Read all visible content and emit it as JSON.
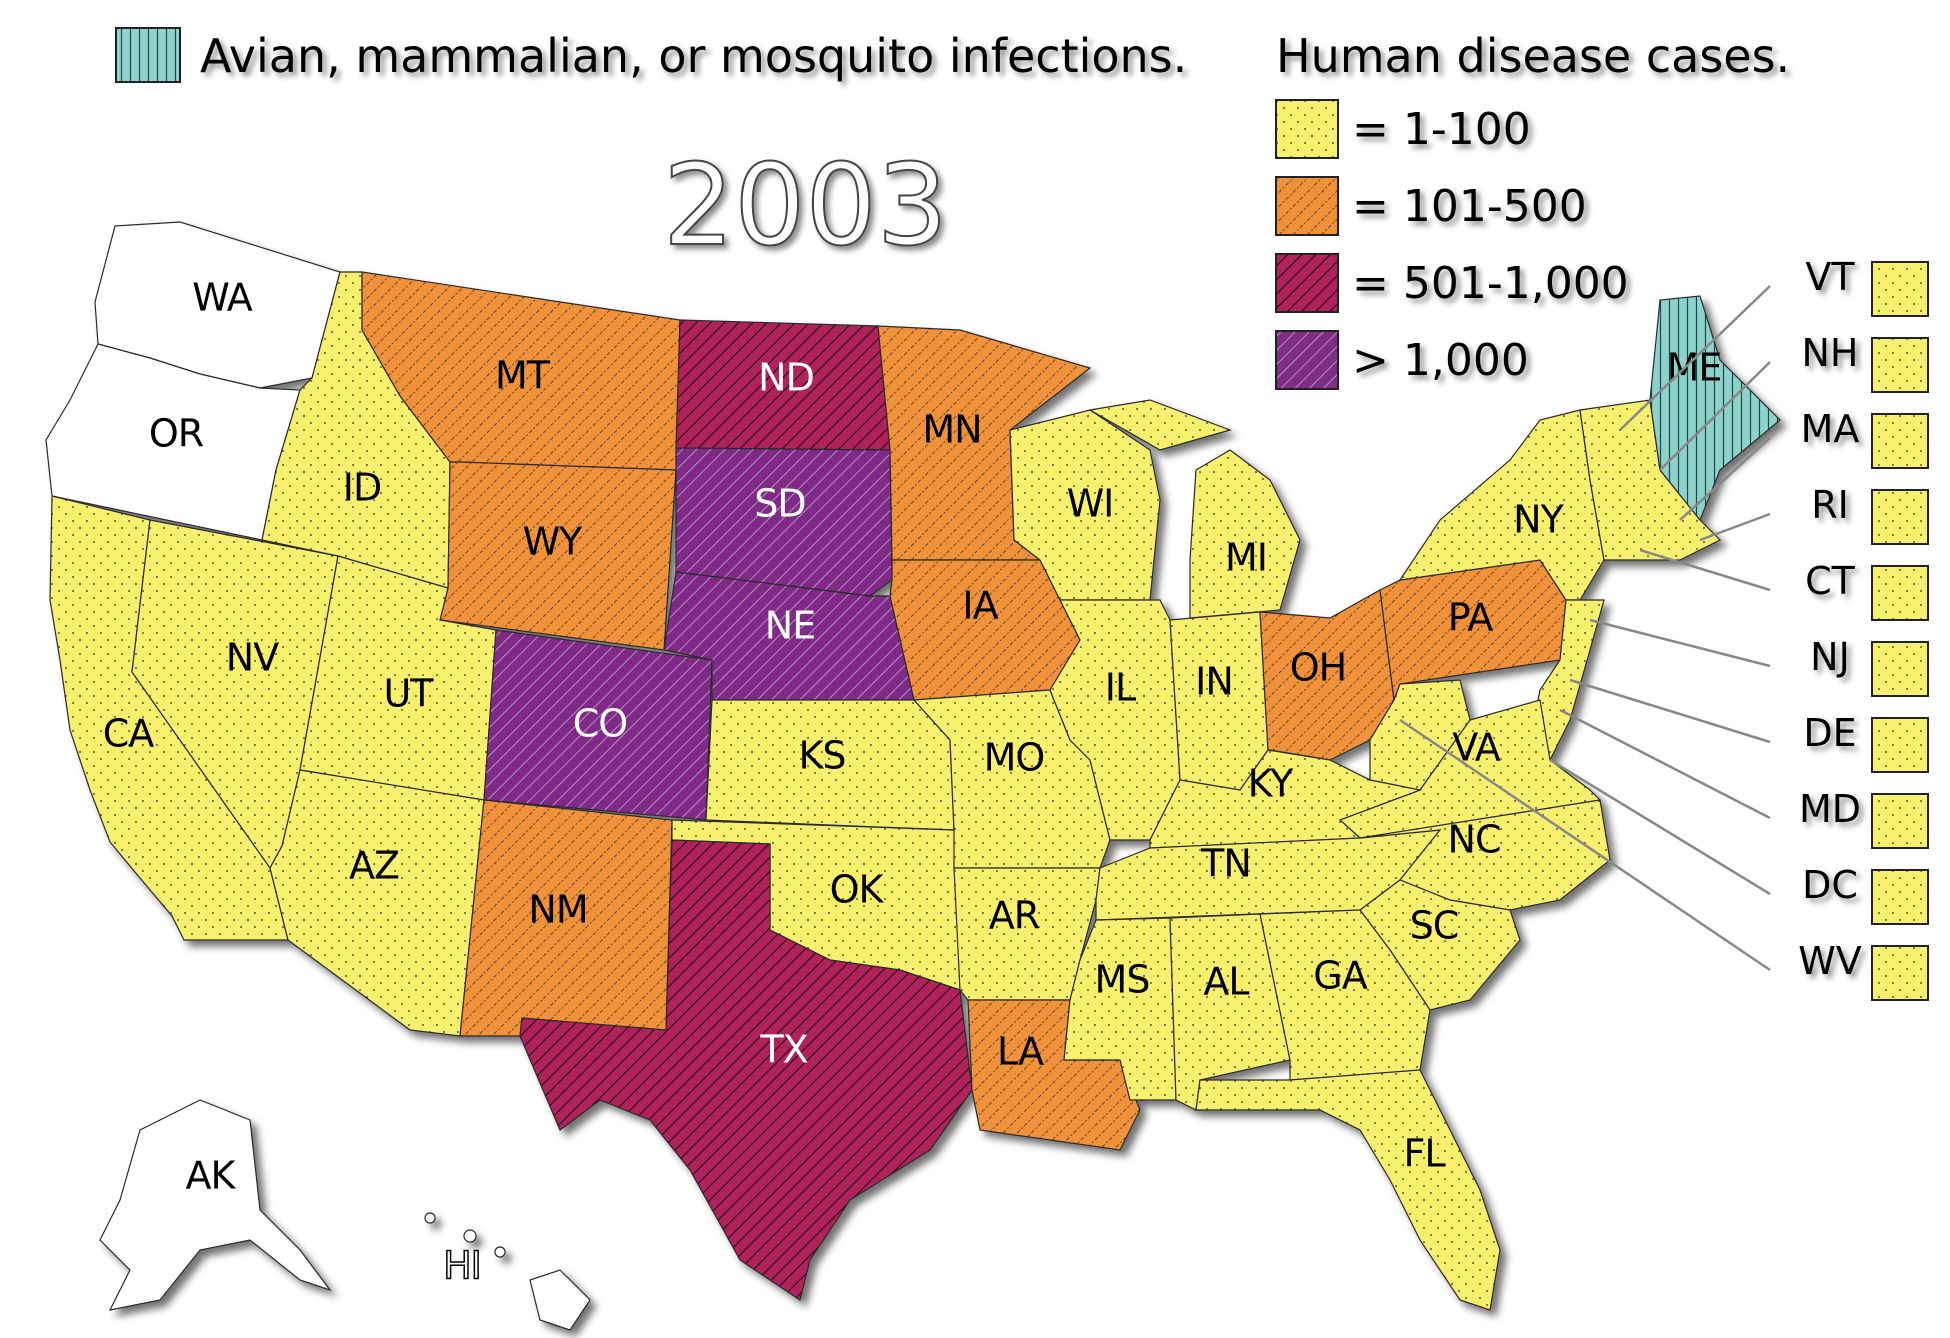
{
  "year": "2003",
  "legend": {
    "other_label": "Avian, mammalian, or mosquito infections.",
    "human_title": "Human disease cases.",
    "items": [
      {
        "label": "= 1-100",
        "class": "yellow"
      },
      {
        "label": "= 101-500",
        "class": "orange"
      },
      {
        "label": "= 501-1,000",
        "class": "red"
      },
      {
        "label": "> 1,000",
        "class": "purple"
      }
    ]
  },
  "colors": {
    "yellow": "#f7f06e",
    "orange": "#f0913a",
    "red": "#b0225a",
    "purple": "#7e2c86",
    "teal": "#8ed2cc",
    "white": "#ffffff"
  },
  "states": {
    "WA": "WA",
    "OR": "OR",
    "ID": "ID",
    "MT": "MT",
    "WY": "WY",
    "ND": "ND",
    "SD": "SD",
    "NE": "NE",
    "CO": "CO",
    "NV": "NV",
    "UT": "UT",
    "CA": "CA",
    "AZ": "AZ",
    "NM": "NM",
    "TX": "TX",
    "OK": "OK",
    "KS": "KS",
    "MN": "MN",
    "IA": "IA",
    "MO": "MO",
    "AR": "AR",
    "LA": "LA",
    "WI": "WI",
    "IL": "IL",
    "MI": "MI",
    "IN": "IN",
    "OH": "OH",
    "KY": "KY",
    "TN": "TN",
    "MS": "MS",
    "AL": "AL",
    "GA": "GA",
    "FL": "FL",
    "SC": "SC",
    "NC": "NC",
    "VA": "VA",
    "PA": "PA",
    "NY": "NY",
    "ME": "ME",
    "AK": "AK",
    "HI": "HI"
  },
  "small_states": [
    "VT",
    "NH",
    "MA",
    "RI",
    "CT",
    "NJ",
    "DE",
    "MD",
    "DC",
    "WV"
  ]
}
